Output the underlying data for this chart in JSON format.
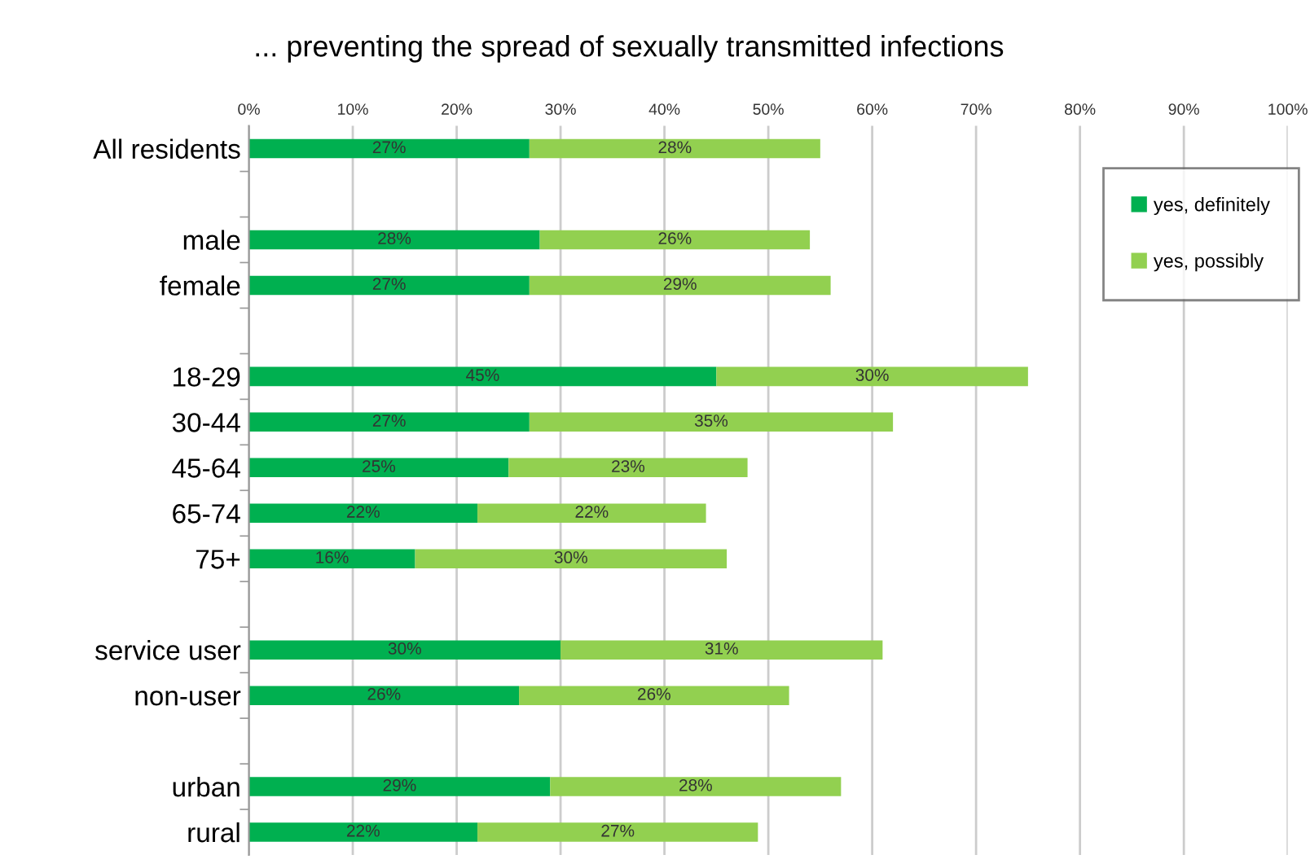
{
  "chart_data": {
    "type": "bar",
    "orientation": "horizontal",
    "stacked": true,
    "title": "... preventing the spread of sexually transmitted infections",
    "categories": [
      "All residents",
      null,
      "male",
      "female",
      null,
      "18-29",
      "30-44",
      "45-64",
      "65-74",
      "75+",
      null,
      "service user",
      "non-user",
      null,
      "urban",
      "rural"
    ],
    "series": [
      {
        "name": "yes, definitely",
        "color": "#00b050",
        "values": [
          27,
          null,
          28,
          27,
          null,
          45,
          27,
          25,
          22,
          16,
          null,
          30,
          26,
          null,
          29,
          22
        ],
        "value_labels": [
          "27%",
          null,
          "28%",
          "27%",
          null,
          "45%",
          "27%",
          "25%",
          "22%",
          "16%",
          null,
          "30%",
          "26%",
          null,
          "29%",
          "22%"
        ]
      },
      {
        "name": "yes, possibly",
        "color": "#92d050",
        "values": [
          28,
          null,
          26,
          29,
          null,
          30,
          35,
          23,
          22,
          30,
          null,
          31,
          26,
          null,
          28,
          27
        ],
        "value_labels": [
          "28%",
          null,
          "26%",
          "29%",
          null,
          "30%",
          "35%",
          "23%",
          "22%",
          "30%",
          null,
          "31%",
          "26%",
          null,
          "28%",
          "27%"
        ]
      }
    ],
    "xlim": [
      0,
      100
    ],
    "xticks": [
      {
        "value": 0,
        "label": "0%"
      },
      {
        "value": 10,
        "label": "10%"
      },
      {
        "value": 20,
        "label": "20%"
      },
      {
        "value": 30,
        "label": "30%"
      },
      {
        "value": 40,
        "label": "40%"
      },
      {
        "value": 50,
        "label": "50%"
      },
      {
        "value": 60,
        "label": "60%"
      },
      {
        "value": 70,
        "label": "70%"
      },
      {
        "value": 80,
        "label": "80%"
      },
      {
        "value": 90,
        "label": "90%"
      },
      {
        "value": 100,
        "label": "100%"
      }
    ],
    "grid": "x",
    "legend": "top right"
  }
}
